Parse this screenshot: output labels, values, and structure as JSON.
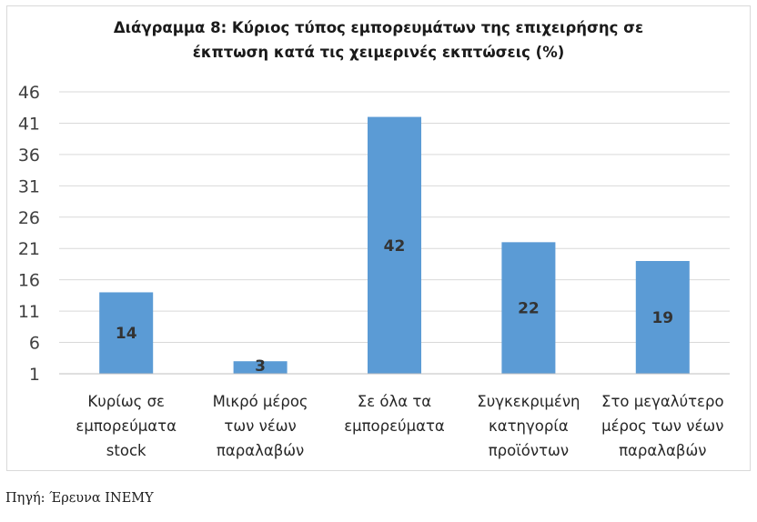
{
  "chart_data": {
    "type": "bar",
    "title_lines": [
      "Διάγραμμα 8: Κύριος τύπος  εμπορευμάτων της επιχειρήσης σε",
      "έκπτωση κατά τις χειμερινές εκπτώσεις (%)"
    ],
    "categories": [
      [
        "Κυρίως σε",
        "εμπορεύματα",
        "stock"
      ],
      [
        "Μικρό μέρος",
        "των νέων",
        "παραλαβών"
      ],
      [
        "Σε όλα τα",
        "εμπορεύματα"
      ],
      [
        "Συγκεκριμένη",
        "κατηγορία",
        "προϊόντων"
      ],
      [
        "Στο μεγαλύτερο",
        "μέρος των νέων",
        "παραλαβών"
      ]
    ],
    "values": [
      14,
      3,
      42,
      22,
      19
    ],
    "data_labels": [
      "14",
      "3",
      "42",
      "22",
      "19"
    ],
    "yticks": [
      1,
      6,
      11,
      16,
      21,
      26,
      31,
      36,
      41,
      46
    ],
    "ylim": [
      1,
      46
    ],
    "grid": true,
    "legend": "none",
    "bar_color": "#5b9bd5",
    "grid_color": "#d9d9d9"
  },
  "source_text": "Πηγή: Έρευνα ΙΝΕΜΥ"
}
